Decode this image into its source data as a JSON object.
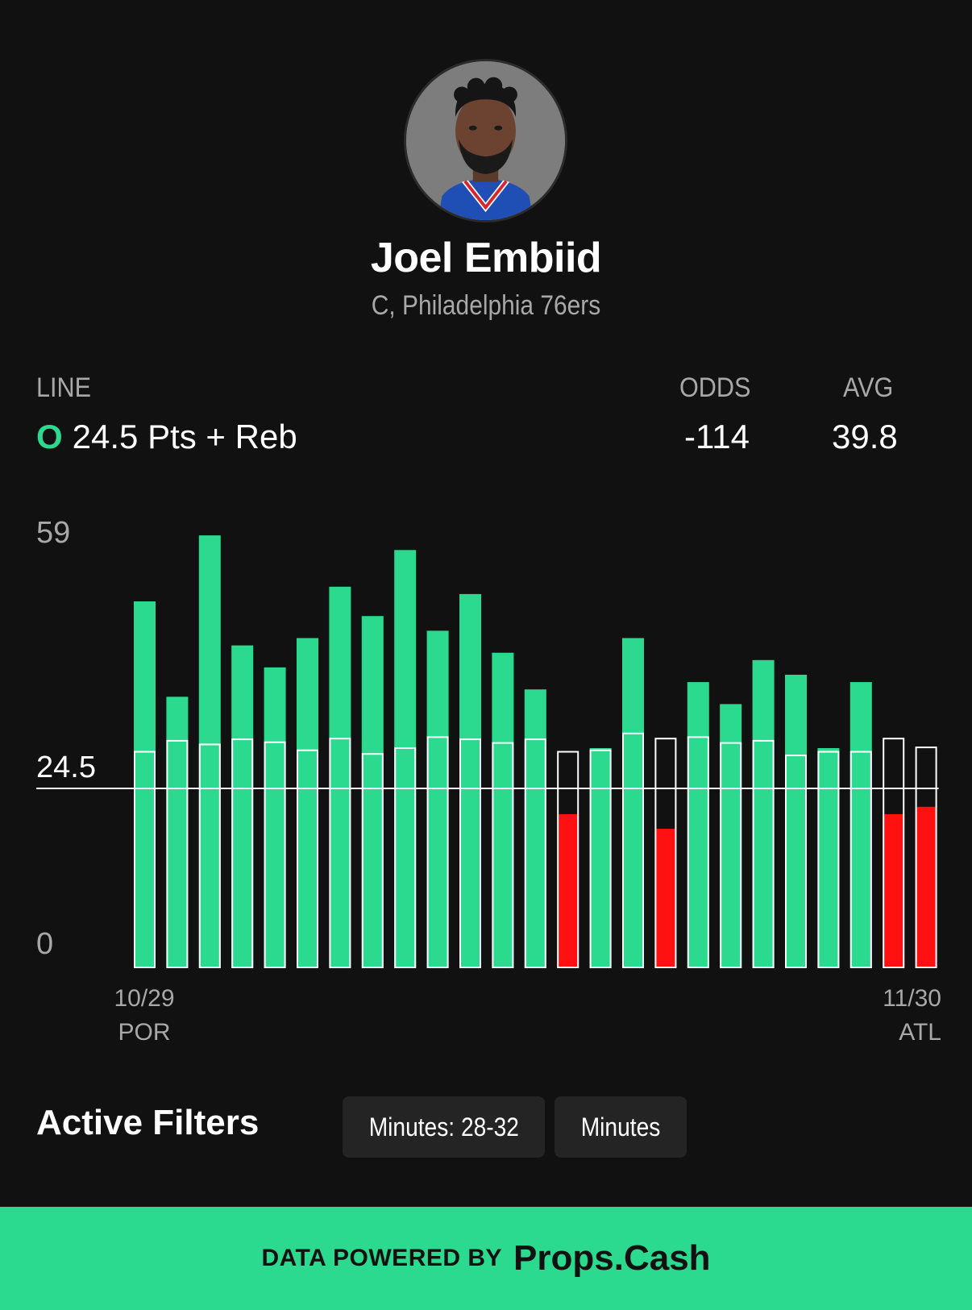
{
  "player": {
    "name": "Joel Embiid",
    "subtitle": "C, Philadelphia 76ers"
  },
  "stats": {
    "line_label": "LINE",
    "line_side": "O",
    "line_value": "24.5 Pts + Reb",
    "odds_label": "ODDS",
    "odds_value": "-114",
    "avg_label": "AVG",
    "avg_value": "39.8"
  },
  "chart_data": {
    "type": "bar",
    "title": "",
    "ymax_label": "59",
    "line_label": "24.5",
    "zero_label": "0",
    "ylim": [
      0,
      59
    ],
    "line": 24.5,
    "values": [
      50,
      37,
      59,
      44,
      41,
      45,
      52,
      48,
      57,
      46,
      51,
      43,
      38,
      21,
      30,
      45,
      19,
      39,
      36,
      42,
      40,
      30,
      39,
      21,
      22
    ],
    "minutes_line": [
      29.5,
      31,
      30.5,
      31.2,
      30.8,
      29.7,
      31.3,
      29.2,
      30,
      31.5,
      31.2,
      30.7,
      31.2,
      29.5,
      29.7,
      32,
      31.3,
      31.5,
      30.7,
      31,
      29,
      29.5,
      29.5,
      31.3,
      30.1
    ],
    "first_label": {
      "date": "10/29",
      "team": "POR"
    },
    "last_label": {
      "date": "11/30",
      "team": "ATL"
    },
    "colors": {
      "over": "#2bd98f",
      "under": "#ff1111",
      "outline": "#ffffff"
    }
  },
  "filters": {
    "title": "Active Filters",
    "chips": [
      "Minutes: 28-32",
      "Minutes"
    ]
  },
  "footer": {
    "powered_by": "DATA POWERED BY",
    "brand": "Props.Cash"
  }
}
